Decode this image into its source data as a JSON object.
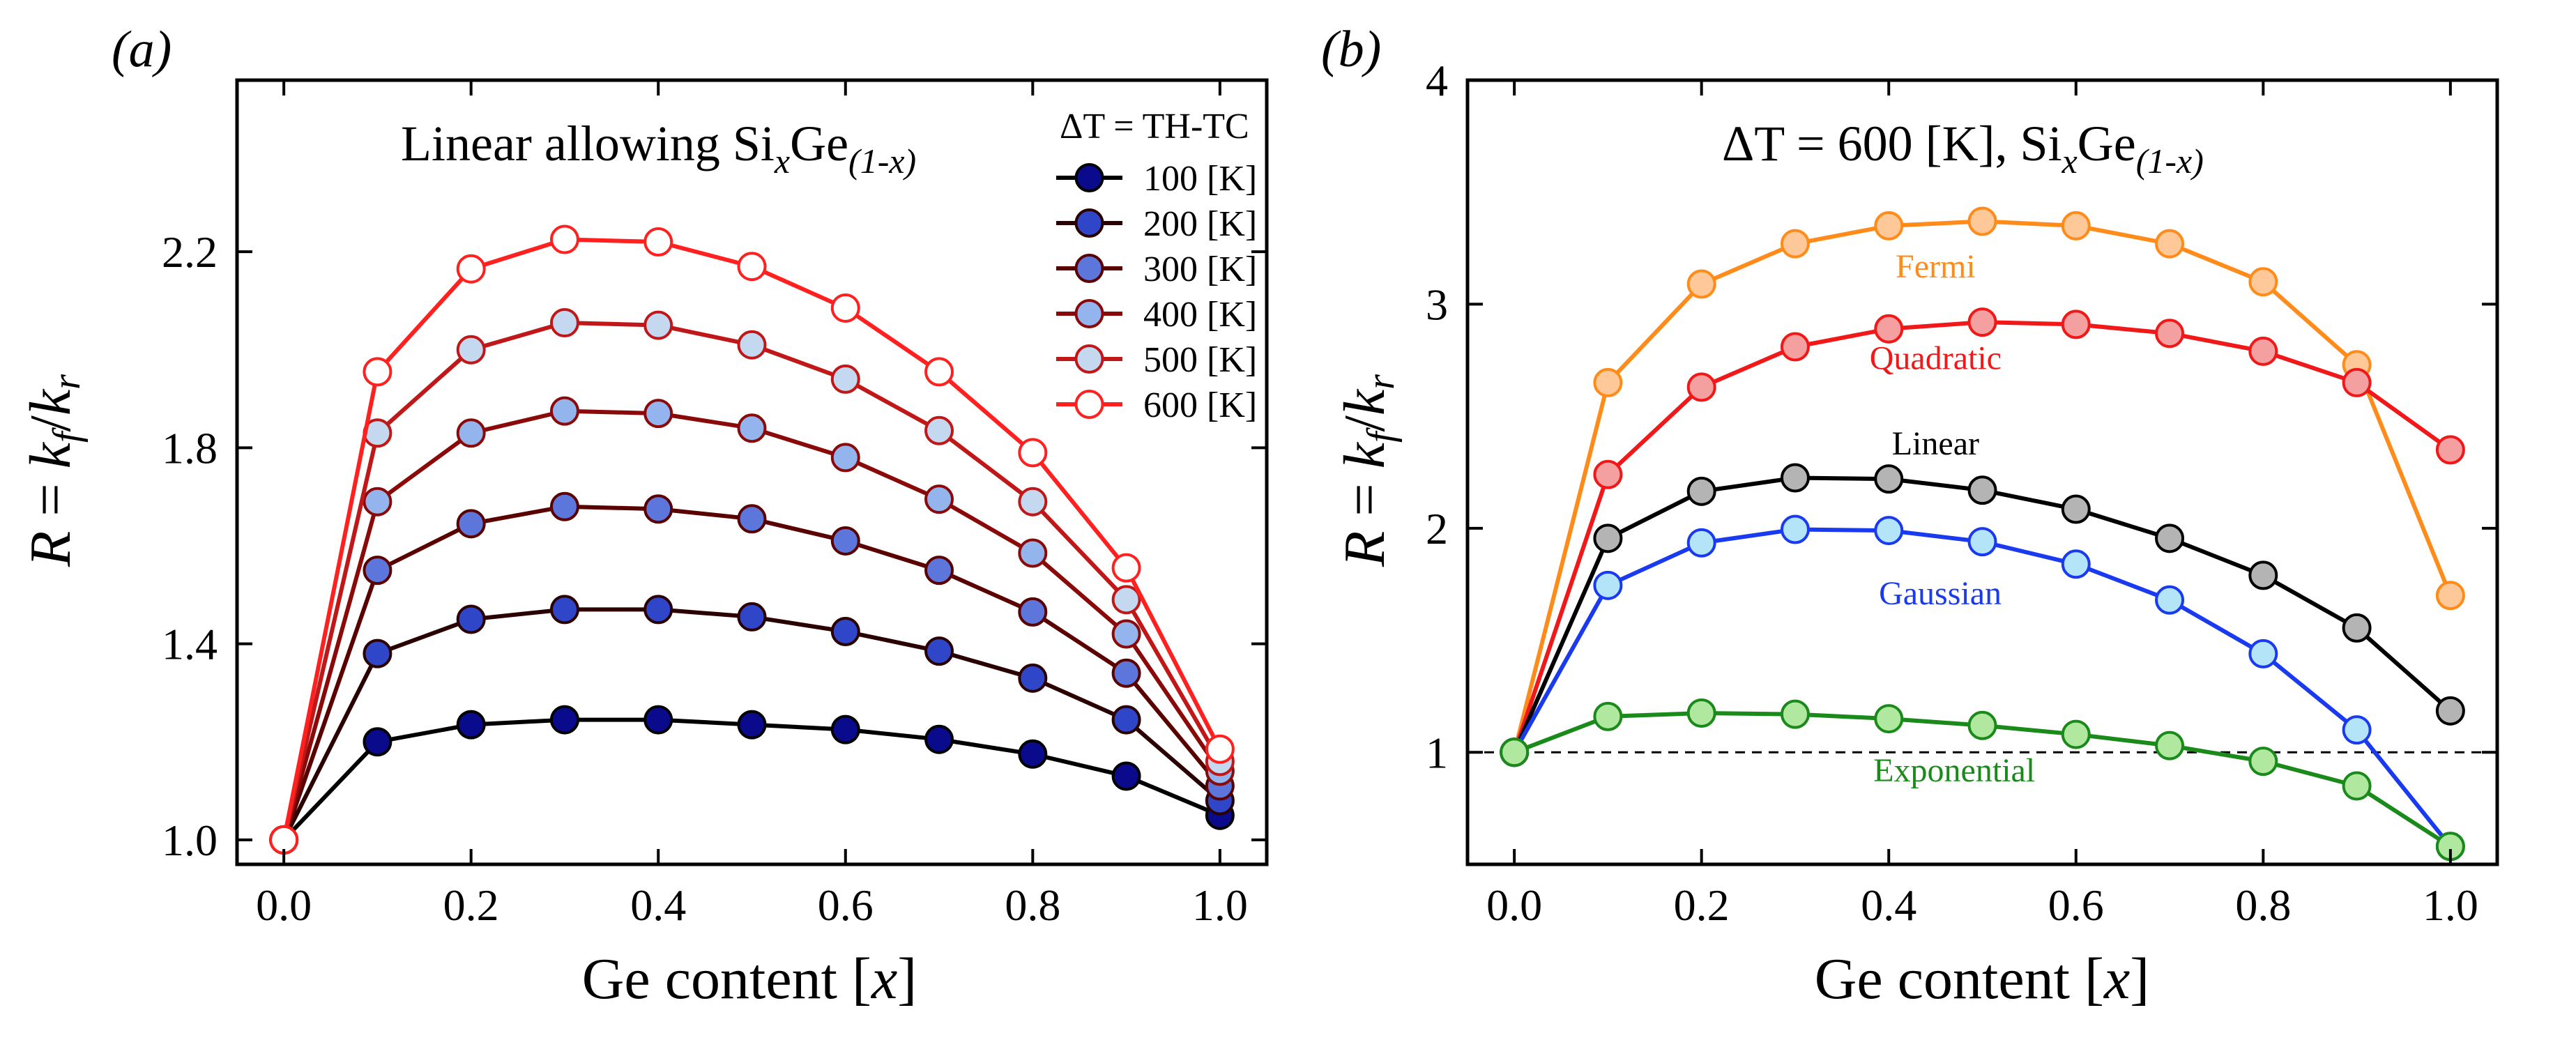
{
  "chart_data": [
    {
      "type": "line",
      "panel_label": "(a)",
      "title": "Linear allowing SixGe(1-x)",
      "title_parts": {
        "main": "Linear allowing Si",
        "sub1": "x",
        "mid": "Ge",
        "sub2": "(1-x)"
      },
      "xlabel": "Ge content [x]",
      "xlabel_parts": {
        "main": "Ge content [",
        "italic": "x",
        "end": "]"
      },
      "ylabel": "R = kf/kr",
      "ylabel_parts": {
        "r": "R",
        "eq": " = ",
        "k1": "k",
        "s1": "f",
        "slash": "/",
        "k2": "k",
        "s2": "r"
      },
      "xlim": [
        -0.05,
        1.05
      ],
      "ylim": [
        0.95,
        2.55
      ],
      "xticks": [
        0.0,
        0.2,
        0.4,
        0.6,
        0.8,
        1.0
      ],
      "xtick_labels": [
        "0.0",
        "0.2",
        "0.4",
        "0.6",
        "0.8",
        "1.0"
      ],
      "yticks": [
        1.0,
        1.4,
        1.8,
        2.2
      ],
      "ytick_labels": [
        "1.0",
        "1.4",
        "1.8",
        "2.2"
      ],
      "legend_title": "ΔT = TH-TC",
      "legend_position": "top-right",
      "x": [
        0.0,
        0.1,
        0.2,
        0.3,
        0.4,
        0.5,
        0.6,
        0.7,
        0.8,
        0.9,
        1.0
      ],
      "series": [
        {
          "name": "100 [K]",
          "line_color": "#000000",
          "marker_fill": "#0a0a8c",
          "marker_edge": "#000000",
          "values": [
            1.0,
            1.2,
            1.235,
            1.245,
            1.245,
            1.235,
            1.225,
            1.205,
            1.175,
            1.13,
            1.05
          ]
        },
        {
          "name": "200 [K]",
          "line_color": "#2a0000",
          "marker_fill": "#3046c8",
          "marker_edge": "#2a0000",
          "values": [
            1.0,
            1.38,
            1.45,
            1.47,
            1.47,
            1.455,
            1.425,
            1.385,
            1.33,
            1.245,
            1.08
          ]
        },
        {
          "name": "300 [K]",
          "line_color": "#5a0000",
          "marker_fill": "#5c76dc",
          "marker_edge": "#5a0000",
          "values": [
            1.0,
            1.55,
            1.645,
            1.68,
            1.675,
            1.655,
            1.61,
            1.55,
            1.465,
            1.34,
            1.11
          ]
        },
        {
          "name": "400 [K]",
          "line_color": "#8a0a0a",
          "marker_fill": "#94b4ee",
          "marker_edge": "#8a0a0a",
          "values": [
            1.0,
            1.69,
            1.83,
            1.875,
            1.87,
            1.84,
            1.78,
            1.695,
            1.585,
            1.42,
            1.14
          ]
        },
        {
          "name": "500 [K]",
          "line_color": "#c01818",
          "marker_fill": "#c4d8f0",
          "marker_edge": "#c01818",
          "values": [
            1.0,
            1.83,
            2.0,
            2.055,
            2.05,
            2.01,
            1.94,
            1.835,
            1.69,
            1.49,
            1.16
          ]
        },
        {
          "name": "600 [K]",
          "line_color": "#ff2020",
          "marker_fill": "#ffffff",
          "marker_edge": "#ff2020",
          "values": [
            1.0,
            1.955,
            2.165,
            2.225,
            2.22,
            2.17,
            2.085,
            1.955,
            1.79,
            1.555,
            1.185
          ]
        }
      ]
    },
    {
      "type": "line",
      "panel_label": "(b)",
      "title": "ΔT = 600 [K], SixGe(1-x)",
      "title_parts": {
        "main": "ΔT = 600 [K], Si",
        "sub1": "x",
        "mid": "Ge",
        "sub2": "(1-x)"
      },
      "xlabel": "Ge content [x]",
      "xlabel_parts": {
        "main": "Ge content [",
        "italic": "x",
        "end": "]"
      },
      "ylabel": "R = kf/kr",
      "ylabel_parts": {
        "r": "R",
        "eq": " = ",
        "k1": "k",
        "s1": "f",
        "slash": "/",
        "k2": "k",
        "s2": "r"
      },
      "xlim": [
        -0.05,
        1.05
      ],
      "ylim": [
        0.5,
        4.0
      ],
      "xticks": [
        0.0,
        0.2,
        0.4,
        0.6,
        0.8,
        1.0
      ],
      "xtick_labels": [
        "0.0",
        "0.2",
        "0.4",
        "0.6",
        "0.8",
        "1.0"
      ],
      "yticks": [
        1,
        2,
        3,
        4
      ],
      "ytick_labels": [
        "1",
        "2",
        "3",
        "4"
      ],
      "reference_line": {
        "y": 1.0,
        "style": "dashed"
      },
      "x": [
        0.0,
        0.1,
        0.2,
        0.3,
        0.4,
        0.5,
        0.6,
        0.7,
        0.8,
        0.9,
        1.0
      ],
      "series": [
        {
          "name": "Fermi",
          "line_color": "#ff8c1a",
          "marker_fill": "#ffc898",
          "marker_edge": "#ff8c1a",
          "label_color": "#ff8c1a",
          "label_x": 0.45,
          "label_y": 3.12,
          "values": [
            1.0,
            2.65,
            3.09,
            3.27,
            3.35,
            3.37,
            3.35,
            3.27,
            3.1,
            2.73,
            1.7
          ]
        },
        {
          "name": "Quadratic",
          "line_color": "#f01818",
          "marker_fill": "#f4a0a0",
          "marker_edge": "#f01818",
          "label_color": "#f01818",
          "label_x": 0.45,
          "label_y": 2.71,
          "values": [
            1.0,
            2.24,
            2.63,
            2.81,
            2.89,
            2.92,
            2.91,
            2.87,
            2.79,
            2.65,
            2.35
          ]
        },
        {
          "name": "Linear",
          "line_color": "#000000",
          "marker_fill": "#b4b4b4",
          "marker_edge": "#000000",
          "label_color": "#000000",
          "label_x": 0.45,
          "label_y": 2.33,
          "values": [
            1.0,
            1.955,
            2.165,
            2.225,
            2.22,
            2.17,
            2.085,
            1.955,
            1.79,
            1.555,
            1.185
          ]
        },
        {
          "name": "Gaussian",
          "line_color": "#1a3af0",
          "marker_fill": "#b4e4f8",
          "marker_edge": "#1a3af0",
          "label_color": "#1a3af0",
          "label_x": 0.455,
          "label_y": 1.66,
          "values": [
            1.0,
            1.745,
            1.935,
            1.995,
            1.99,
            1.94,
            1.84,
            1.68,
            1.44,
            1.1,
            0.58
          ]
        },
        {
          "name": "Exponential",
          "line_color": "#1a8a1a",
          "marker_fill": "#b0e8a0",
          "marker_edge": "#1a8a1a",
          "label_color": "#1a8a1a",
          "label_x": 0.47,
          "label_y": 0.87,
          "values": [
            1.0,
            1.16,
            1.175,
            1.17,
            1.15,
            1.12,
            1.08,
            1.03,
            0.96,
            0.85,
            0.58
          ]
        }
      ]
    }
  ]
}
